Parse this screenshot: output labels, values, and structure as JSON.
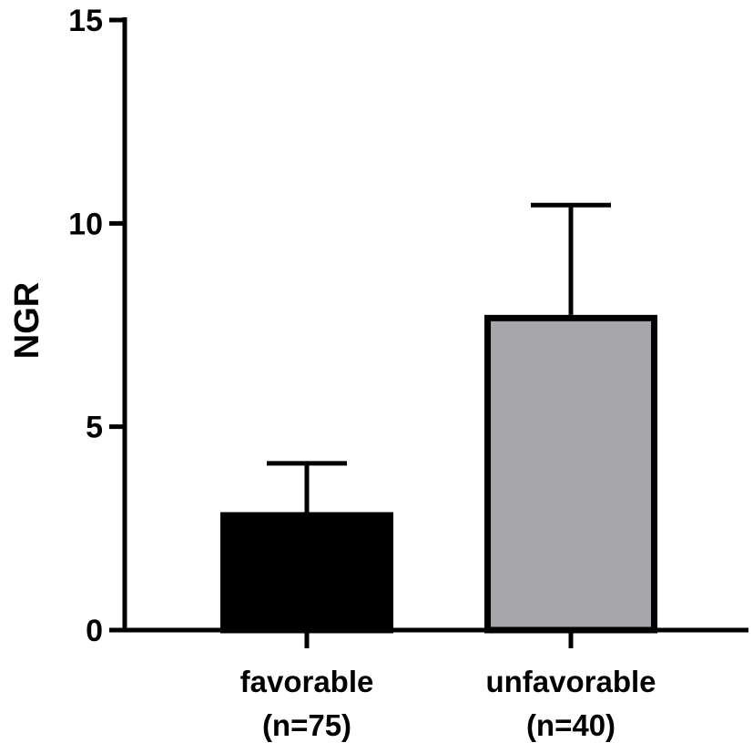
{
  "chart_data": {
    "type": "bar",
    "categories": [
      {
        "line1": "favorable",
        "line2": "(n=75)"
      },
      {
        "line1": "unfavorable",
        "line2": "(n=40)"
      }
    ],
    "values": [
      2.9,
      7.75
    ],
    "error_upper": [
      4.1,
      10.45
    ],
    "bar_fill_colors": [
      "#000000",
      "#a7a6ab"
    ],
    "bar_stroke_color": "#000000",
    "ylabel": "NGR",
    "ylim": [
      0,
      15
    ],
    "yticks": [
      0,
      5,
      10,
      15
    ],
    "ytick_labels": [
      "0",
      "5",
      "10",
      "15"
    ],
    "grid": false,
    "legend": "none"
  }
}
